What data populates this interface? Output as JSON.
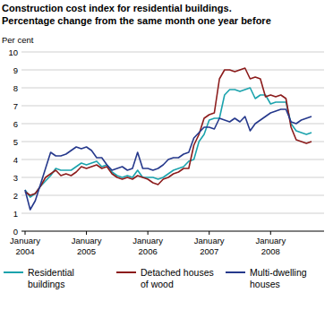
{
  "chart_data": {
    "type": "line",
    "title": "Construction cost index for residential buildings.",
    "subtitle": "Percentage change from the same month one year before",
    "y_label": "Per cent",
    "categories": [
      "January 2004",
      null,
      null,
      null,
      null,
      null,
      null,
      null,
      null,
      null,
      null,
      null,
      "January 2005",
      null,
      null,
      null,
      null,
      null,
      null,
      null,
      null,
      null,
      null,
      null,
      "January 2006",
      null,
      null,
      null,
      null,
      null,
      null,
      null,
      null,
      null,
      null,
      null,
      "January 2007",
      null,
      null,
      null,
      null,
      null,
      null,
      null,
      null,
      null,
      null,
      null,
      "January 2008",
      null,
      null,
      null,
      null,
      null,
      null,
      null,
      null
    ],
    "series": [
      {
        "name": "Residential buildings",
        "color": "#1ba3ad",
        "values": [
          2.3,
          1.9,
          2.1,
          2.5,
          2.8,
          3.1,
          3.5,
          3.4,
          3.4,
          3.4,
          3.6,
          3.8,
          3.7,
          3.8,
          3.9,
          3.6,
          3.7,
          3.3,
          3.1,
          3.0,
          3.1,
          3.0,
          3.4,
          3.0,
          3.0,
          3.0,
          2.9,
          3.0,
          3.2,
          3.4,
          3.5,
          3.6,
          3.9,
          4.0,
          5.0,
          5.4,
          6.2,
          6.3,
          6.3,
          7.6,
          7.9,
          7.9,
          7.8,
          7.9,
          8.0,
          7.4,
          7.6,
          7.6,
          7.1,
          7.2,
          7.2,
          7.2,
          6.0,
          5.6,
          5.5,
          5.4,
          5.5
        ]
      },
      {
        "name": "Detached houses of wood",
        "color": "#8c1c1c",
        "values": [
          2.2,
          2.0,
          2.1,
          2.5,
          3.0,
          3.2,
          3.4,
          3.1,
          3.2,
          3.1,
          3.3,
          3.6,
          3.5,
          3.6,
          3.7,
          3.5,
          3.6,
          3.2,
          3.0,
          2.9,
          3.0,
          2.9,
          3.1,
          3.0,
          2.9,
          2.7,
          2.6,
          2.9,
          3.0,
          3.2,
          3.3,
          3.5,
          3.5,
          4.8,
          5.4,
          6.3,
          6.5,
          6.6,
          8.5,
          9.0,
          9.0,
          8.9,
          9.0,
          9.1,
          8.5,
          8.6,
          8.5,
          7.5,
          7.6,
          7.5,
          7.6,
          7.4,
          5.8,
          5.1,
          5.0,
          4.9,
          5.0
        ]
      },
      {
        "name": "Multi-dwelling houses",
        "color": "#26398c",
        "values": [
          2.3,
          1.2,
          1.7,
          2.6,
          3.5,
          4.4,
          4.2,
          4.2,
          4.3,
          4.5,
          4.7,
          4.6,
          4.7,
          4.5,
          4.1,
          4.1,
          3.7,
          3.4,
          3.5,
          3.6,
          3.4,
          3.5,
          4.4,
          3.5,
          3.5,
          3.4,
          3.5,
          3.7,
          4.0,
          4.1,
          4.1,
          4.3,
          4.4,
          5.2,
          5.5,
          5.8,
          5.8,
          5.7,
          6.3,
          6.2,
          6.1,
          6.3,
          6.1,
          6.4,
          5.6,
          6.0,
          6.2,
          6.4,
          6.6,
          6.7,
          6.8,
          6.8,
          6.1,
          6.0,
          6.2,
          6.3,
          6.4
        ]
      }
    ],
    "ylim": [
      0,
      10
    ],
    "yticks": [
      0,
      1,
      2,
      3,
      4,
      5,
      6,
      7,
      8,
      9,
      10
    ],
    "grid": true,
    "legend": "bottom"
  }
}
